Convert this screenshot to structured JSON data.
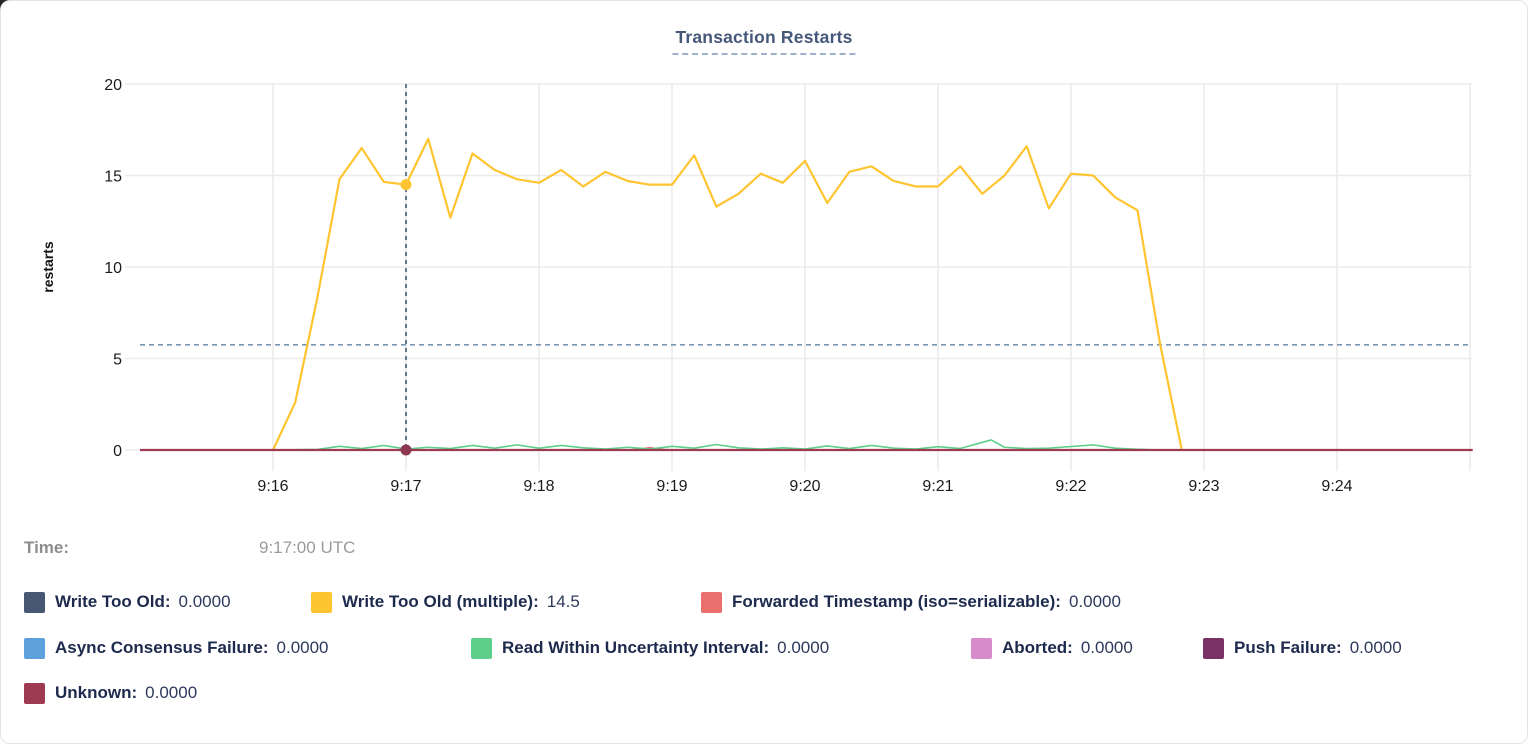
{
  "hover": {
    "time_label": "Time:",
    "time_value": "9:17:00 UTC"
  },
  "legend_rows": [
    [
      0,
      1,
      2
    ],
    [
      3,
      4,
      5,
      6
    ],
    [
      7
    ]
  ],
  "chart_data": {
    "type": "line",
    "title": "Transaction Restarts",
    "ylabel": "restarts",
    "ylim": [
      0,
      20
    ],
    "yticks": [
      0,
      5,
      10,
      15,
      20
    ],
    "x_axis": {
      "unit": "minutes since 9:15:00 UTC",
      "xlim": [
        0,
        10.02
      ],
      "ticks": [
        {
          "t": 1,
          "label": "9:16"
        },
        {
          "t": 2,
          "label": "9:17"
        },
        {
          "t": 3,
          "label": "9:18"
        },
        {
          "t": 4,
          "label": "9:19"
        },
        {
          "t": 5,
          "label": "9:20"
        },
        {
          "t": 6,
          "label": "9:21"
        },
        {
          "t": 7,
          "label": "9:22"
        },
        {
          "t": 8,
          "label": "9:23"
        },
        {
          "t": 9,
          "label": "9:24"
        },
        {
          "t": 10,
          "label": ""
        }
      ]
    },
    "grid": true,
    "threshold": {
      "value": 5.75,
      "style": "dashed",
      "color": "#7B96B1"
    },
    "cursor": {
      "t": 2,
      "time_text": "9:17:00 UTC",
      "color": "#3F5F78",
      "dots": [
        {
          "series": "Write Too Old (multiple)",
          "t": 2,
          "v": 14.5,
          "color": "#FFC531"
        },
        {
          "series": "Unknown",
          "t": 2,
          "v": 0,
          "color": "#8E3750"
        }
      ]
    },
    "draw_order": [
      2,
      4,
      1,
      7
    ],
    "series": [
      {
        "name": "Write Too Old",
        "color": "#475872",
        "hover_value": "0.0000",
        "width": 1.6,
        "points": []
      },
      {
        "name": "Write Too Old (multiple)",
        "color": "#FFC531",
        "hover_value": "14.5",
        "width": 2.2,
        "points": [
          [
            1,
            0
          ],
          [
            1.167,
            2.6
          ],
          [
            1.333,
            8.3
          ],
          [
            1.5,
            14.8
          ],
          [
            1.667,
            16.5
          ],
          [
            1.833,
            14.65
          ],
          [
            2,
            14.5
          ],
          [
            2.167,
            17
          ],
          [
            2.333,
            12.7
          ],
          [
            2.5,
            16.2
          ],
          [
            2.667,
            15.3
          ],
          [
            2.833,
            14.8
          ],
          [
            3,
            14.6
          ],
          [
            3.167,
            15.3
          ],
          [
            3.333,
            14.4
          ],
          [
            3.5,
            15.2
          ],
          [
            3.667,
            14.7
          ],
          [
            3.833,
            14.5
          ],
          [
            4,
            14.5
          ],
          [
            4.167,
            16.1
          ],
          [
            4.333,
            13.3
          ],
          [
            4.5,
            14
          ],
          [
            4.667,
            15.1
          ],
          [
            4.833,
            14.6
          ],
          [
            5,
            15.8
          ],
          [
            5.167,
            13.5
          ],
          [
            5.333,
            15.2
          ],
          [
            5.5,
            15.5
          ],
          [
            5.667,
            14.7
          ],
          [
            5.833,
            14.4
          ],
          [
            6,
            14.4
          ],
          [
            6.167,
            15.5
          ],
          [
            6.333,
            14
          ],
          [
            6.5,
            15
          ],
          [
            6.667,
            16.6
          ],
          [
            6.833,
            13.2
          ],
          [
            7,
            15.1
          ],
          [
            7.167,
            15
          ],
          [
            7.333,
            13.8
          ],
          [
            7.5,
            13.1
          ],
          [
            7.667,
            5.9
          ],
          [
            7.833,
            0
          ]
        ]
      },
      {
        "name": "Forwarded Timestamp (iso=serializable)",
        "color": "#EA6E6E",
        "hover_value": "0.0000",
        "width": 1.6,
        "points": [
          [
            0,
            0
          ],
          [
            3.667,
            0
          ],
          [
            3.75,
            0.04
          ],
          [
            3.833,
            0.13
          ],
          [
            3.917,
            0.04
          ],
          [
            4,
            0
          ],
          [
            10.02,
            0
          ]
        ]
      },
      {
        "name": "Async Consensus Failure",
        "color": "#5CA1DB",
        "hover_value": "0.0000",
        "width": 1.6,
        "points": []
      },
      {
        "name": "Read Within Uncertainty Interval",
        "color": "#5ECE8B",
        "hover_value": "0.0000",
        "width": 1.6,
        "points": [
          [
            1,
            0
          ],
          [
            1.333,
            0.03
          ],
          [
            1.5,
            0.2
          ],
          [
            1.667,
            0.08
          ],
          [
            1.833,
            0.25
          ],
          [
            2,
            0.05
          ],
          [
            2.167,
            0.15
          ],
          [
            2.333,
            0.08
          ],
          [
            2.5,
            0.25
          ],
          [
            2.667,
            0.1
          ],
          [
            2.833,
            0.28
          ],
          [
            3,
            0.1
          ],
          [
            3.167,
            0.25
          ],
          [
            3.333,
            0.12
          ],
          [
            3.5,
            0.05
          ],
          [
            3.667,
            0.15
          ],
          [
            3.833,
            0.05
          ],
          [
            4,
            0.2
          ],
          [
            4.167,
            0.1
          ],
          [
            4.333,
            0.3
          ],
          [
            4.5,
            0.12
          ],
          [
            4.667,
            0.05
          ],
          [
            4.833,
            0.12
          ],
          [
            5,
            0.05
          ],
          [
            5.167,
            0.22
          ],
          [
            5.333,
            0.08
          ],
          [
            5.5,
            0.25
          ],
          [
            5.667,
            0.1
          ],
          [
            5.833,
            0.05
          ],
          [
            6,
            0.18
          ],
          [
            6.167,
            0.08
          ],
          [
            6.4,
            0.55
          ],
          [
            6.5,
            0.15
          ],
          [
            6.667,
            0.08
          ],
          [
            6.833,
            0.1
          ],
          [
            7.167,
            0.28
          ],
          [
            7.333,
            0.1
          ],
          [
            7.5,
            0.04
          ],
          [
            7.667,
            0
          ]
        ]
      },
      {
        "name": "Aborted",
        "color": "#D78BCB",
        "hover_value": "0.0000",
        "width": 1.6,
        "points": []
      },
      {
        "name": "Push Failure",
        "color": "#7A3266",
        "hover_value": "0.0000",
        "width": 1.6,
        "points": []
      },
      {
        "name": "Unknown",
        "color": "#9E3A52",
        "hover_value": "0.0000",
        "width": 2.2,
        "points": [
          [
            0,
            0
          ],
          [
            10.02,
            0
          ]
        ]
      }
    ]
  }
}
